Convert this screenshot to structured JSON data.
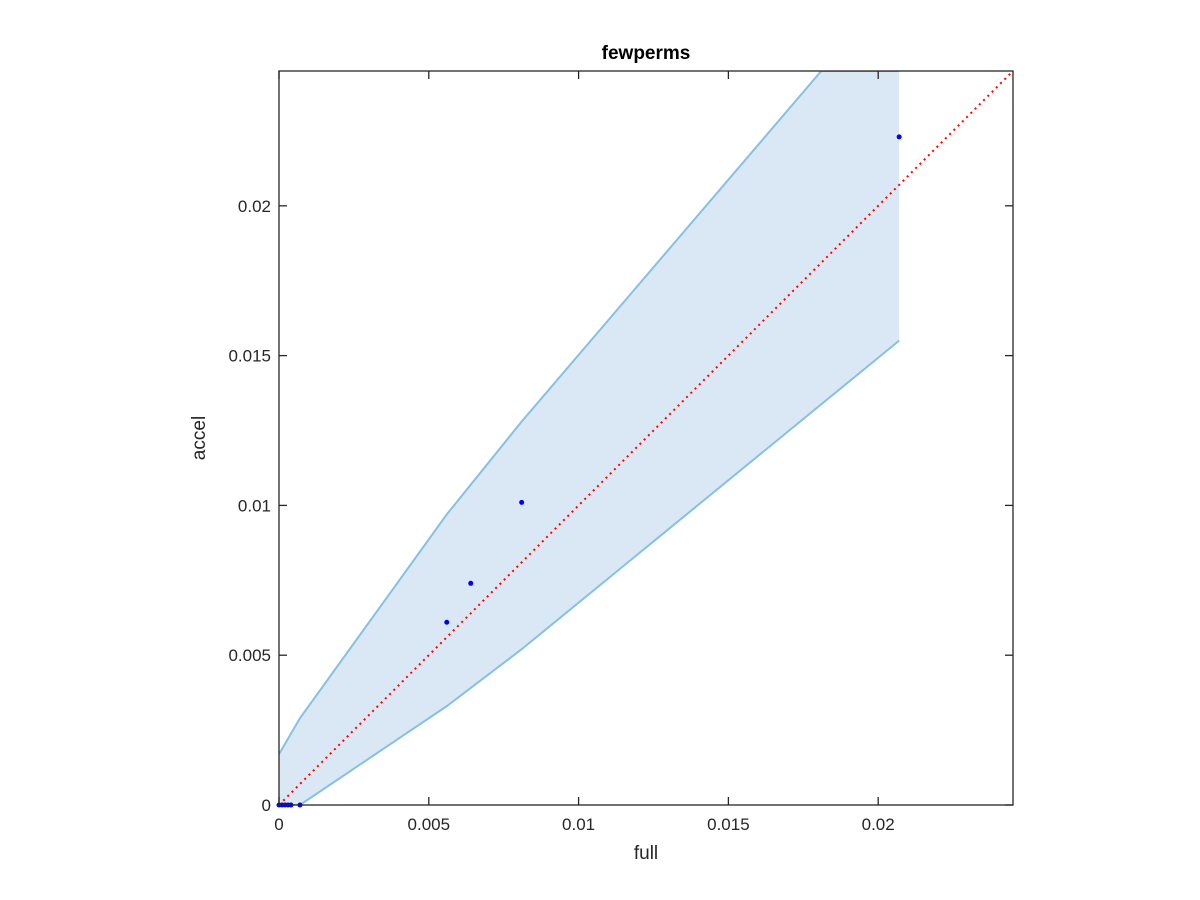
{
  "chart_data": {
    "type": "scatter",
    "title": "fewperms",
    "xlabel": "full",
    "ylabel": "accel",
    "xlim": [
      0,
      0.0245
    ],
    "ylim": [
      0,
      0.0245
    ],
    "xticks": [
      0,
      0.005,
      0.01,
      0.015,
      0.02
    ],
    "xtick_labels": [
      "0",
      "0.005",
      "0.01",
      "0.015",
      "0.02"
    ],
    "yticks": [
      0,
      0.005,
      0.01,
      0.015,
      0.02
    ],
    "ytick_labels": [
      "0",
      "0.005",
      "0.01",
      "0.015",
      "0.02"
    ],
    "grid": false,
    "legend": "none",
    "points": {
      "x": [
        0,
        0.0001,
        0.0002,
        0.0003,
        0.0004,
        0.0007,
        0.0056,
        0.0064,
        0.0081,
        0.0207
      ],
      "y": [
        0,
        0,
        0,
        0,
        0,
        0,
        0.0061,
        0.0074,
        0.0101,
        0.0223
      ]
    },
    "band": {
      "upper": {
        "x": [
          0,
          0.0007,
          0.0056,
          0.0081,
          0.0181,
          0.0207
        ],
        "y": [
          0.0017,
          0.0029,
          0.0097,
          0.0128,
          0.0245,
          0.0245
        ]
      },
      "lower": {
        "x": [
          0,
          0.0007,
          0.0056,
          0.0081,
          0.0207
        ],
        "y": [
          0,
          0,
          0.0033,
          0.0052,
          0.0155
        ]
      }
    },
    "reference_line": {
      "x": [
        0,
        0.0245
      ],
      "y": [
        0,
        0.0245
      ]
    },
    "colors": {
      "points": "#0000ff",
      "band_fill": "#d9e8f4",
      "band_edge": "#86c0e3",
      "reference_line": "#ff0000",
      "axes": "#262626"
    }
  }
}
